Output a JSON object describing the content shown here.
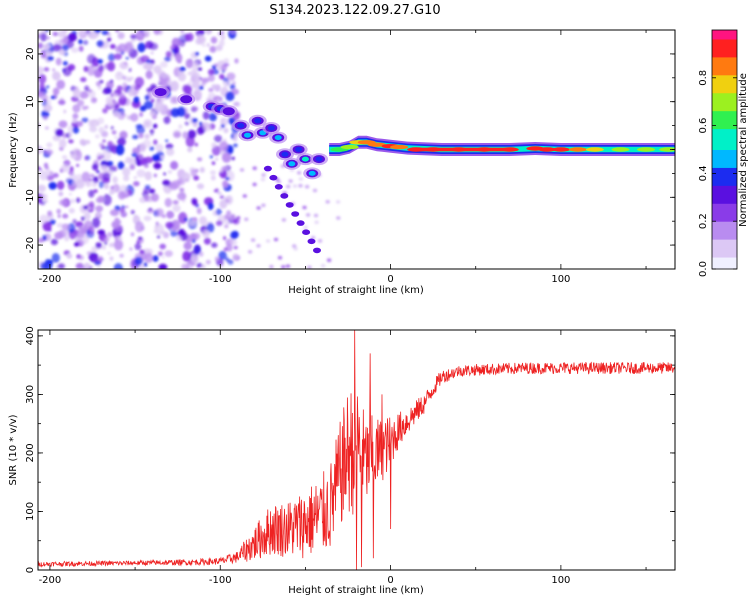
{
  "title": "S134.2023.122.09.27.G10",
  "colors": {
    "snr_line": "#ee2222",
    "colormap": [
      "#f0f0ff",
      "#dcc8f5",
      "#b98cf0",
      "#8a3ce8",
      "#5a10e0",
      "#1c2cf0",
      "#00b8ff",
      "#00f0c8",
      "#30f050",
      "#9cf020",
      "#f0d010",
      "#ff7a10",
      "#ff2020",
      "#ff1480"
    ]
  },
  "chart_data": [
    {
      "type": "heatmap",
      "xlabel": "Height of straight line (km)",
      "ylabel": "Frequency (Hz)",
      "xlim": [
        -207,
        167
      ],
      "ylim": [
        -25,
        25
      ],
      "x_ticks": [
        -200,
        -100,
        0,
        100
      ],
      "y_ticks": [
        20,
        10,
        0,
        -10,
        -20
      ],
      "colorbar": {
        "label": "Normalized spectral amplitude",
        "range": [
          0,
          1
        ],
        "ticks": [
          "0.0",
          "0.2",
          "0.4",
          "0.6",
          "0.8"
        ]
      },
      "ridge": [
        {
          "x": -135,
          "freq": 12,
          "amp": 0.28
        },
        {
          "x": -120,
          "freq": 10.5,
          "amp": 0.3
        },
        {
          "x": -105,
          "freq": 9,
          "amp": 0.35
        },
        {
          "x": -100,
          "freq": 8.5,
          "amp": 0.42
        },
        {
          "x": -95,
          "freq": 8,
          "amp": 0.3
        },
        {
          "x": -88,
          "freq": 5,
          "amp": 0.38
        },
        {
          "x": -84,
          "freq": 3,
          "amp": 0.45
        },
        {
          "x": -78,
          "freq": 6,
          "amp": 0.35
        },
        {
          "x": -75,
          "freq": 3.5,
          "amp": 0.45
        },
        {
          "x": -70,
          "freq": 4.5,
          "amp": 0.4
        },
        {
          "x": -66,
          "freq": 2.5,
          "amp": 0.48
        },
        {
          "x": -62,
          "freq": -1,
          "amp": 0.42
        },
        {
          "x": -58,
          "freq": -3,
          "amp": 0.45
        },
        {
          "x": -54,
          "freq": 0,
          "amp": 0.4
        },
        {
          "x": -50,
          "freq": -2,
          "amp": 0.5
        },
        {
          "x": -46,
          "freq": -5,
          "amp": 0.45
        },
        {
          "x": -42,
          "freq": -2,
          "amp": 0.4
        },
        {
          "x": -36,
          "freq": 0,
          "amp": 0.45
        },
        {
          "x": -30,
          "freq": 0,
          "amp": 0.55
        },
        {
          "x": -24,
          "freq": 0.5,
          "amp": 0.65
        },
        {
          "x": -19,
          "freq": 1.5,
          "amp": 0.75
        },
        {
          "x": -14,
          "freq": 1.5,
          "amp": 0.8
        },
        {
          "x": -8,
          "freq": 1,
          "amp": 0.82
        },
        {
          "x": 0,
          "freq": 0.7,
          "amp": 0.85
        },
        {
          "x": 10,
          "freq": 0.3,
          "amp": 0.9
        },
        {
          "x": 30,
          "freq": 0,
          "amp": 0.95
        },
        {
          "x": 50,
          "freq": 0,
          "amp": 0.92
        },
        {
          "x": 70,
          "freq": 0,
          "amp": 0.9
        },
        {
          "x": 85,
          "freq": 0.2,
          "amp": 0.95
        },
        {
          "x": 100,
          "freq": 0,
          "amp": 0.92
        },
        {
          "x": 120,
          "freq": 0,
          "amp": 0.85
        },
        {
          "x": 140,
          "freq": 0,
          "amp": 0.82
        },
        {
          "x": 160,
          "freq": 0,
          "amp": 0.8
        }
      ]
    },
    {
      "type": "line",
      "xlabel": "Height of straight line (km)",
      "ylabel": "SNR (10 * v/v)",
      "xlim": [
        -207,
        167
      ],
      "ylim": [
        0,
        410
      ],
      "x_ticks": [
        -200,
        -100,
        0,
        100
      ],
      "y_ticks": [
        0,
        100,
        200,
        300,
        400
      ],
      "x": [
        -207,
        -180,
        -150,
        -120,
        -100,
        -90,
        -80,
        -70,
        -60,
        -50,
        -40,
        -35,
        -30,
        -25,
        -20,
        -15,
        -10,
        -5,
        0,
        5,
        10,
        15,
        20,
        25,
        30,
        40,
        50,
        60,
        80,
        100,
        120,
        140,
        167
      ],
      "y": [
        10,
        11,
        12,
        13,
        15,
        22,
        45,
        70,
        70,
        80,
        95,
        110,
        160,
        200,
        215,
        185,
        195,
        205,
        220,
        240,
        255,
        270,
        285,
        310,
        330,
        340,
        342,
        343,
        345,
        345,
        345,
        345,
        345
      ],
      "noise_amp": [
        4,
        4,
        4,
        5,
        6,
        10,
        30,
        45,
        50,
        60,
        70,
        80,
        90,
        110,
        120,
        80,
        70,
        55,
        45,
        30,
        25,
        20,
        18,
        15,
        12,
        10,
        10,
        10,
        10,
        10,
        10,
        10,
        10
      ],
      "spikes": [
        {
          "x": -21,
          "y": 410
        },
        {
          "x": -20,
          "y": 0
        },
        {
          "x": -17,
          "y": 5
        },
        {
          "x": -12,
          "y": 370
        },
        {
          "x": -10,
          "y": 20
        },
        {
          "x": 0,
          "y": 70
        },
        {
          "x": -5,
          "y": 300
        }
      ]
    }
  ]
}
